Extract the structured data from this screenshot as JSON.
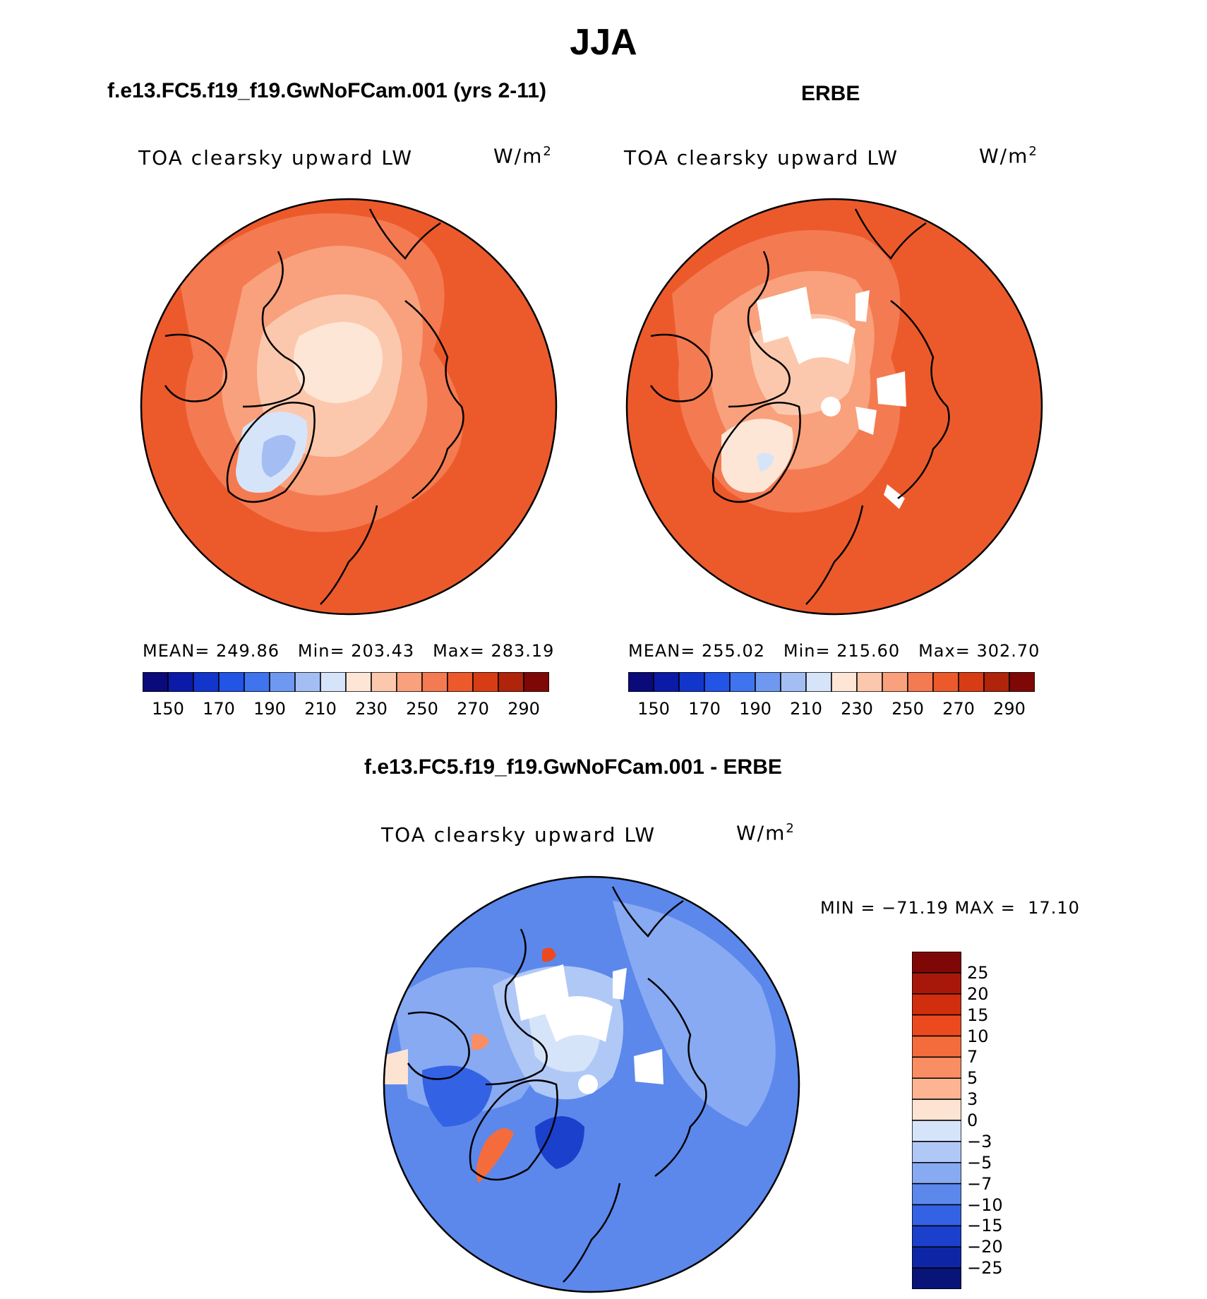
{
  "title": "JJA",
  "panels": [
    {
      "header": "f.e13.FC5.f19_f19.GwNoFCam.001 (yrs 2-11)",
      "variable": "TOA clearsky upward LW",
      "units_base": "W/m",
      "units_exp": "2",
      "stats": {
        "mean_label": "MEAN=",
        "mean": "249.86",
        "min_label": "Min=",
        "min": "203.43",
        "max_label": "Max=",
        "max": "283.19"
      }
    },
    {
      "header": "ERBE",
      "variable": "TOA clearsky upward LW",
      "units_base": "W/m",
      "units_exp": "2",
      "stats": {
        "mean_label": "MEAN=",
        "mean": "255.02",
        "min_label": "Min=",
        "min": "215.60",
        "max_label": "Max=",
        "max": "302.70"
      }
    },
    {
      "header": "f.e13.FC5.f19_f19.GwNoFCam.001 - ERBE",
      "variable": "TOA clearsky upward LW",
      "units_base": "W/m",
      "units_exp": "2",
      "stats": {
        "min_label": "MIN =",
        "min": "−71.19",
        "max_label": "MAX =",
        "max": "17.10"
      }
    }
  ],
  "abs_colorbar": {
    "ticks": [
      "150",
      "170",
      "190",
      "210",
      "230",
      "250",
      "270",
      "290"
    ],
    "colors": [
      "#0a0a7a",
      "#0c1aa8",
      "#1236cc",
      "#2254e6",
      "#3f74ee",
      "#6f98f0",
      "#a4bef4",
      "#d6e4fa",
      "#fde6d6",
      "#fcc8ad",
      "#f9a07c",
      "#f47a51",
      "#ec5a2c",
      "#d83c14",
      "#b0240c",
      "#7e0806"
    ]
  },
  "diff_colorbar": {
    "ticks": [
      "25",
      "20",
      "15",
      "10",
      "7",
      "5",
      "3",
      "0",
      "−3",
      "−5",
      "−7",
      "−10",
      "−15",
      "−20",
      "−25"
    ],
    "colors": [
      "#7e0806",
      "#a8180a",
      "#d02e0e",
      "#ec4a1e",
      "#f46c3c",
      "#f98e64",
      "#fcb492",
      "#fde4d2",
      "#d6e4fa",
      "#b0c8f6",
      "#88aaf2",
      "#5c88ec",
      "#3462e4",
      "#1a40cc",
      "#0e26a6",
      "#081478"
    ]
  },
  "map_colors": {
    "warm_outer": "#ec5a2c",
    "warm_mid": "#f47a51",
    "warm_light": "#f9a07c",
    "pale": "#fcc8ad",
    "palest": "#fde6d6",
    "cool_light": "#d6e4fa",
    "cool_mid": "#a4bef4",
    "diff_bg": "#5c88ec",
    "diff_light": "#b0c8f6",
    "diff_lighter": "#d6e4fa",
    "diff_dark": "#1a40cc",
    "diff_warm": "#f46c3c"
  }
}
